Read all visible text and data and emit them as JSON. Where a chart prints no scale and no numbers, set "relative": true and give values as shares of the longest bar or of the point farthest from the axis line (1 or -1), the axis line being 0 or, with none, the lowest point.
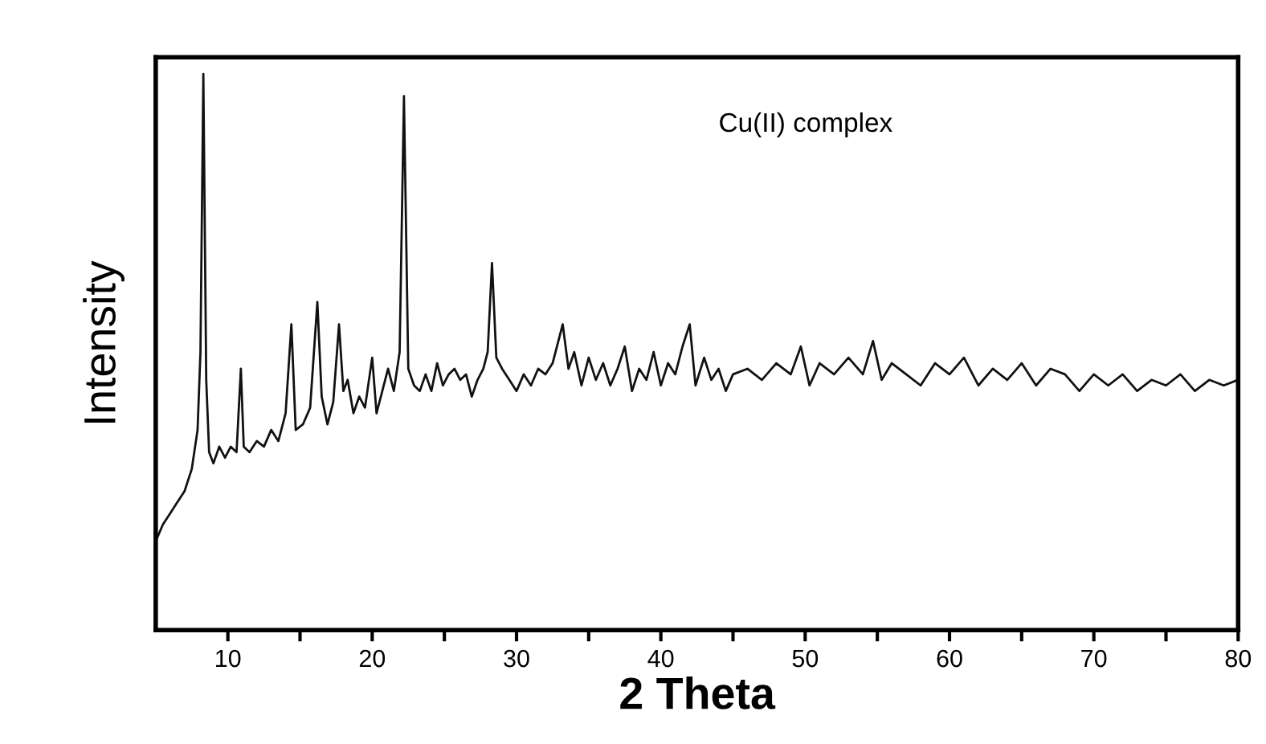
{
  "chart_data": {
    "type": "line",
    "relative": true,
    "xlabel": "2 Theta",
    "ylabel": "Intensity",
    "annotations": [
      "Cu(II) complex"
    ],
    "xlim": [
      5,
      80
    ],
    "xticks": [
      10,
      {
        "value": 15,
        "label": null
      },
      20,
      {
        "value": 25,
        "label": null
      },
      30,
      {
        "value": 35,
        "label": null
      },
      40,
      {
        "value": 45,
        "label": null
      },
      50,
      {
        "value": 55,
        "label": null
      },
      60,
      {
        "value": 65,
        "label": null
      },
      70,
      {
        "value": 75,
        "label": null
      },
      80
    ],
    "tick_labels": "x",
    "grid": false,
    "legend": false,
    "marker": "none",
    "line_style": "solid",
    "x": [
      5.0,
      5.5,
      6.0,
      6.5,
      7.0,
      7.5,
      7.9,
      8.1,
      8.3,
      8.5,
      8.7,
      9.0,
      9.4,
      9.8,
      10.2,
      10.6,
      10.9,
      11.1,
      11.5,
      12.0,
      12.5,
      13.0,
      13.5,
      14.0,
      14.4,
      14.7,
      15.2,
      15.7,
      16.2,
      16.5,
      16.9,
      17.3,
      17.7,
      18.0,
      18.3,
      18.7,
      19.1,
      19.5,
      20.0,
      20.3,
      20.7,
      21.1,
      21.5,
      21.9,
      22.2,
      22.5,
      22.9,
      23.3,
      23.7,
      24.1,
      24.5,
      24.9,
      25.3,
      25.7,
      26.1,
      26.5,
      26.9,
      27.3,
      27.7,
      28.0,
      28.3,
      28.6,
      29.0,
      29.5,
      30.0,
      30.5,
      31.0,
      31.5,
      32.0,
      32.5,
      33.2,
      33.6,
      34.0,
      34.5,
      35.0,
      35.5,
      36.0,
      36.5,
      37.0,
      37.5,
      38.0,
      38.5,
      39.0,
      39.5,
      40.0,
      40.5,
      41.0,
      41.5,
      42.0,
      42.4,
      43.0,
      43.5,
      44.0,
      44.5,
      45.0,
      46.0,
      47.0,
      48.0,
      49.0,
      49.7,
      50.3,
      51.0,
      52.0,
      53.0,
      54.0,
      54.7,
      55.3,
      56.0,
      57.0,
      58.0,
      59.0,
      60.0,
      61.0,
      62.0,
      63.0,
      64.0,
      65.0,
      66.0,
      67.0,
      68.0,
      69.0,
      70.0,
      71.0,
      72.0,
      73.0,
      74.0,
      75.0,
      76.0,
      77.0,
      78.0,
      79.0,
      80.0
    ],
    "series": [
      {
        "color": "#111111",
        "values": [
          0.16,
          0.19,
          0.21,
          0.23,
          0.25,
          0.29,
          0.36,
          0.5,
          1.0,
          0.45,
          0.32,
          0.3,
          0.33,
          0.31,
          0.33,
          0.32,
          0.47,
          0.33,
          0.32,
          0.34,
          0.33,
          0.36,
          0.34,
          0.39,
          0.55,
          0.36,
          0.37,
          0.4,
          0.59,
          0.42,
          0.37,
          0.41,
          0.55,
          0.43,
          0.45,
          0.39,
          0.42,
          0.4,
          0.49,
          0.39,
          0.43,
          0.47,
          0.43,
          0.5,
          0.96,
          0.47,
          0.44,
          0.43,
          0.46,
          0.43,
          0.48,
          0.44,
          0.46,
          0.47,
          0.45,
          0.46,
          0.42,
          0.45,
          0.47,
          0.5,
          0.66,
          0.49,
          0.47,
          0.45,
          0.43,
          0.46,
          0.44,
          0.47,
          0.46,
          0.48,
          0.55,
          0.47,
          0.5,
          0.44,
          0.49,
          0.45,
          0.48,
          0.44,
          0.47,
          0.51,
          0.43,
          0.47,
          0.45,
          0.5,
          0.44,
          0.48,
          0.46,
          0.51,
          0.55,
          0.44,
          0.49,
          0.45,
          0.47,
          0.43,
          0.46,
          0.47,
          0.45,
          0.48,
          0.46,
          0.51,
          0.44,
          0.48,
          0.46,
          0.49,
          0.46,
          0.52,
          0.45,
          0.48,
          0.46,
          0.44,
          0.48,
          0.46,
          0.49,
          0.44,
          0.47,
          0.45,
          0.48,
          0.44,
          0.47,
          0.46,
          0.43,
          0.46,
          0.44,
          0.46,
          0.43,
          0.45,
          0.44,
          0.46,
          0.43,
          0.45,
          0.44,
          0.45
        ]
      }
    ]
  }
}
